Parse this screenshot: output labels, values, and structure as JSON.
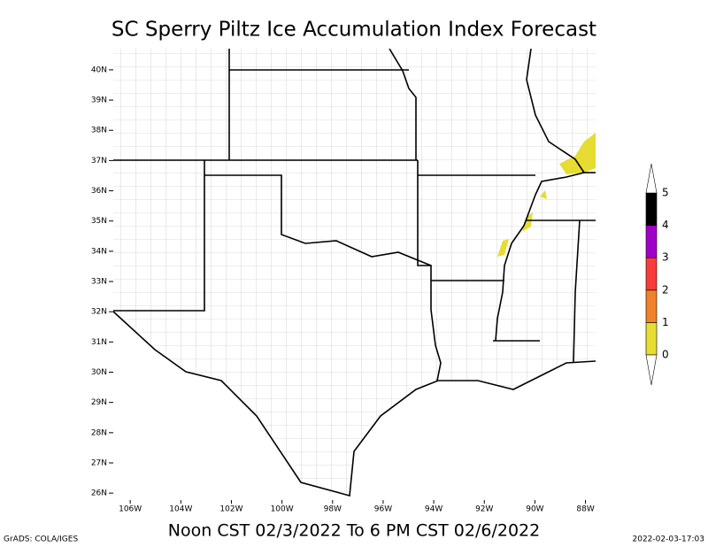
{
  "chart_data": {
    "type": "map",
    "title": "SC Sperry Piltz Ice Accumulation Index Forecast",
    "subtitle": "Noon CST 02/3/2022 To 6 PM CST 02/6/2022",
    "footer_left": "GrADS: COLA/IGES",
    "footer_right": "2022-02-03-17:03",
    "xlim": [
      -106.67,
      -87.6
    ],
    "ylim": [
      25.77,
      40.7
    ],
    "xticks": [
      {
        "value": -106,
        "label": "106W"
      },
      {
        "value": -104,
        "label": "104W"
      },
      {
        "value": -102,
        "label": "102W"
      },
      {
        "value": -100,
        "label": "100W"
      },
      {
        "value": -98,
        "label": "98W"
      },
      {
        "value": -96,
        "label": "96W"
      },
      {
        "value": -94,
        "label": "94W"
      },
      {
        "value": -92,
        "label": "92W"
      },
      {
        "value": -90,
        "label": "90W"
      },
      {
        "value": -88,
        "label": "88W"
      }
    ],
    "yticks": [
      {
        "value": 26,
        "label": "26N"
      },
      {
        "value": 27,
        "label": "27N"
      },
      {
        "value": 28,
        "label": "28N"
      },
      {
        "value": 29,
        "label": "29N"
      },
      {
        "value": 30,
        "label": "30N"
      },
      {
        "value": 31,
        "label": "31N"
      },
      {
        "value": 32,
        "label": "32N"
      },
      {
        "value": 33,
        "label": "33N"
      },
      {
        "value": 34,
        "label": "34N"
      },
      {
        "value": 35,
        "label": "35N"
      },
      {
        "value": 36,
        "label": "36N"
      },
      {
        "value": 37,
        "label": "37N"
      },
      {
        "value": 38,
        "label": "38N"
      },
      {
        "value": 39,
        "label": "39N"
      },
      {
        "value": 40,
        "label": "40N"
      }
    ],
    "colorbar": {
      "levels": [
        0,
        1,
        2,
        3,
        4,
        5
      ],
      "colors": [
        "#e6dc32",
        "#f08228",
        "#fa3c3c",
        "#a000c8",
        "#000000"
      ]
    }
  }
}
